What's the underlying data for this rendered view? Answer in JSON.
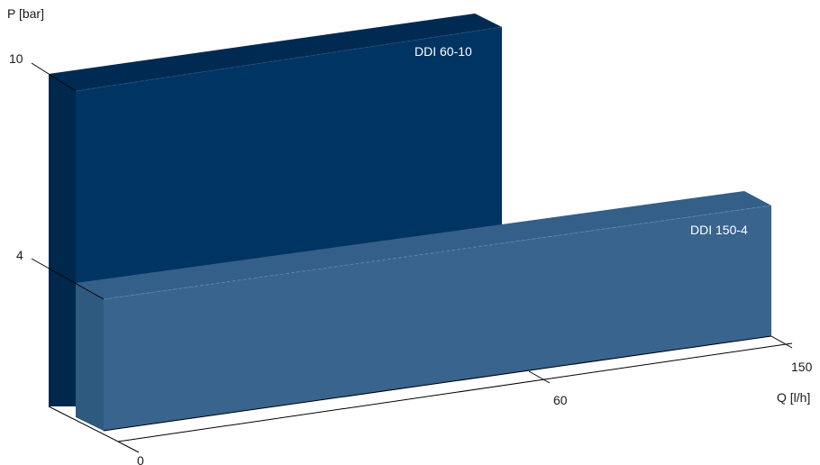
{
  "chart_data": {
    "type": "bar",
    "style": "3d-block",
    "ylabel": "P [bar]",
    "xlabel": "Q [l/h]",
    "y_ticks": [
      "10",
      "4"
    ],
    "x_ticks": [
      "0",
      "60",
      "150"
    ],
    "series": [
      {
        "name": "DDI 60-10",
        "q_max": 60,
        "p_max": 10,
        "color": "#003462"
      },
      {
        "name": "DDI 150-4",
        "q_max": 150,
        "p_max": 4,
        "color": "#38648e"
      }
    ]
  }
}
